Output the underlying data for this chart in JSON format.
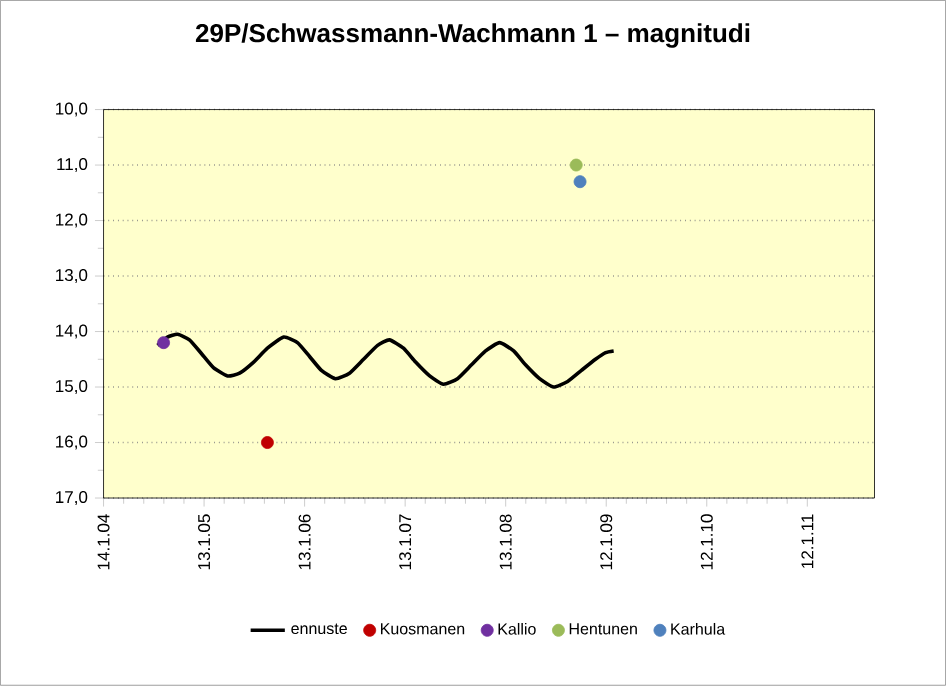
{
  "chart_data": {
    "type": "scatter",
    "title": "29P/Schwassmann-Wachmann 1 – magnitudi",
    "xlim": [
      "2004-01-14",
      "2011-09-13"
    ],
    "xticks": [
      {
        "value": "2004-01-14",
        "label": "14.1.04"
      },
      {
        "value": "2005-01-13",
        "label": "13.1.05"
      },
      {
        "value": "2006-01-13",
        "label": "13.1.06"
      },
      {
        "value": "2007-01-13",
        "label": "13.1.07"
      },
      {
        "value": "2008-01-13",
        "label": "13.1.08"
      },
      {
        "value": "2009-01-12",
        "label": "12.1.09"
      },
      {
        "value": "2010-01-12",
        "label": "12.1.10"
      },
      {
        "value": "2011-01-12",
        "label": "12.1.11"
      }
    ],
    "ylim": [
      17,
      10
    ],
    "yticks": [
      {
        "value": 10,
        "label": "10,0"
      },
      {
        "value": 11,
        "label": "11,0"
      },
      {
        "value": 12,
        "label": "12,0"
      },
      {
        "value": 13,
        "label": "13,0"
      },
      {
        "value": 14,
        "label": "14,0"
      },
      {
        "value": 15,
        "label": "15,0"
      },
      {
        "value": 16,
        "label": "16,0"
      },
      {
        "value": 17,
        "label": "17,0"
      }
    ],
    "grid": "y",
    "legend": "bottom",
    "series": [
      {
        "name": "ennuste",
        "type": "line",
        "color": "#000000",
        "x": [
          "2004-07-28",
          "2004-09-02",
          "2004-10-09",
          "2004-11-21",
          "2005-01-04",
          "2005-02-16",
          "2005-04-08",
          "2005-05-22",
          "2005-07-12",
          "2005-08-31",
          "2005-10-29",
          "2005-12-18",
          "2006-01-31",
          "2006-03-15",
          "2006-05-05",
          "2006-06-25",
          "2006-08-15",
          "2006-10-05",
          "2006-11-17",
          "2007-01-07",
          "2007-02-20",
          "2007-04-12",
          "2007-06-01",
          "2007-07-22",
          "2007-09-11",
          "2007-11-01",
          "2007-12-22",
          "2008-02-11",
          "2008-03-25",
          "2008-05-15",
          "2008-07-05",
          "2008-08-25",
          "2008-10-14",
          "2008-12-04",
          "2009-01-10",
          "2009-02-08"
        ],
        "values": [
          14.25,
          14.1,
          14.05,
          14.15,
          14.4,
          14.65,
          14.8,
          14.75,
          14.55,
          14.3,
          14.1,
          14.2,
          14.45,
          14.7,
          14.85,
          14.75,
          14.5,
          14.25,
          14.15,
          14.3,
          14.55,
          14.8,
          14.95,
          14.85,
          14.6,
          14.35,
          14.2,
          14.35,
          14.6,
          14.85,
          15.0,
          14.9,
          14.7,
          14.5,
          14.38,
          14.35
        ]
      },
      {
        "name": "Kuosmanen",
        "color": "#c00000",
        "x": [
          "2005-08-31"
        ],
        "values": [
          16.0
        ]
      },
      {
        "name": "Kallio",
        "color": "#7030a0",
        "x": [
          "2004-08-19"
        ],
        "values": [
          14.2
        ]
      },
      {
        "name": "Hentunen",
        "color": "#9bbb59",
        "x": [
          "2008-09-25"
        ],
        "values": [
          11.0
        ]
      },
      {
        "name": "Karhula",
        "color": "#4f81bd",
        "x": [
          "2008-10-09"
        ],
        "values": [
          11.3
        ]
      }
    ]
  }
}
